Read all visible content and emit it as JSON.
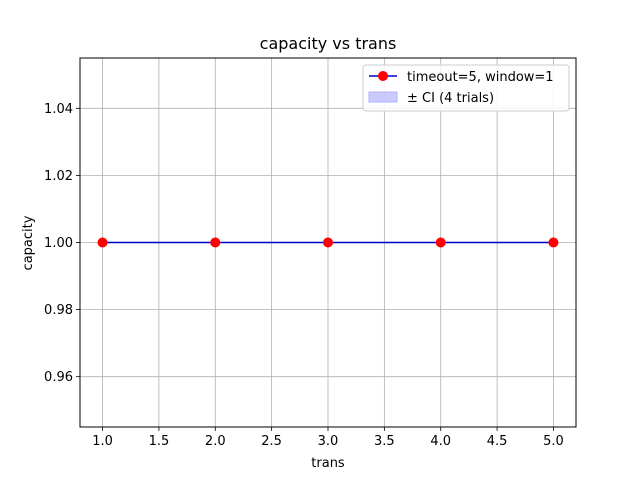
{
  "chart_data": {
    "type": "line",
    "title": "capacity vs trans",
    "xlabel": "trans",
    "ylabel": "capacity",
    "x": [
      1.0,
      2.0,
      3.0,
      4.0,
      5.0
    ],
    "series": [
      {
        "name": "timeout=5, window=1",
        "values": [
          1.0,
          1.0,
          1.0,
          1.0,
          1.0
        ],
        "ci_low": [
          1.0,
          1.0,
          1.0,
          1.0,
          1.0
        ],
        "ci_high": [
          1.0,
          1.0,
          1.0,
          1.0,
          1.0
        ],
        "line_color": "#0000cc",
        "marker_color": "#ff0000"
      }
    ],
    "band_label": "± CI (4 trials)",
    "band_color": "#b3b3ff",
    "xlim": [
      0.8,
      5.2
    ],
    "ylim": [
      0.945,
      1.055
    ],
    "xticks": [
      "1.0",
      "1.5",
      "2.0",
      "2.5",
      "3.0",
      "3.5",
      "4.0",
      "4.5",
      "5.0"
    ],
    "yticks": [
      "0.96",
      "0.98",
      "1.00",
      "1.02",
      "1.04"
    ],
    "grid": true,
    "legend_position": "top-right"
  }
}
